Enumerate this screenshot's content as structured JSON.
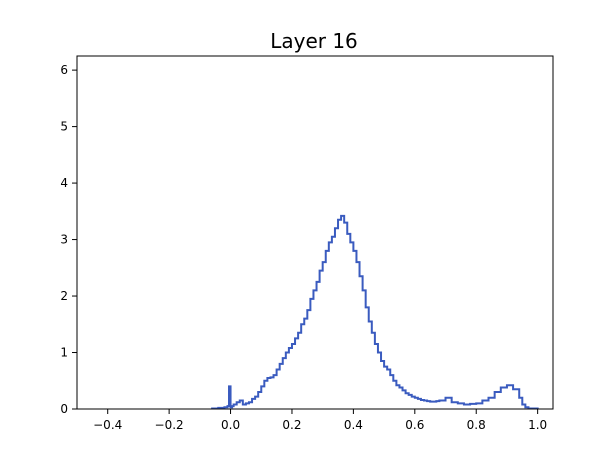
{
  "chart_data": {
    "type": "line",
    "title": "Layer 16",
    "xlabel": "",
    "ylabel": "",
    "xlim": [
      -0.5,
      1.05
    ],
    "ylim": [
      0,
      6.25
    ],
    "xticks": [
      -0.4,
      -0.2,
      0.0,
      0.2,
      0.4,
      0.6,
      0.8,
      1.0
    ],
    "xtick_labels": [
      "−0.4",
      "−0.2",
      "0.0",
      "0.2",
      "0.4",
      "0.6",
      "0.8",
      "1.0"
    ],
    "yticks": [
      0,
      1,
      2,
      3,
      4,
      5,
      6
    ],
    "ytick_labels": [
      "0",
      "1",
      "2",
      "3",
      "4",
      "5",
      "6"
    ],
    "grid": false,
    "line_color": "#3a5bbf",
    "series": [
      {
        "x": [
          -0.06,
          -0.04,
          -0.02,
          -0.01,
          -0.005,
          0.0,
          0.005,
          0.01,
          0.02,
          0.03,
          0.04,
          0.05,
          0.06,
          0.07,
          0.08,
          0.09,
          0.1,
          0.11,
          0.12,
          0.13,
          0.14,
          0.15,
          0.16,
          0.17,
          0.18,
          0.19,
          0.2,
          0.21,
          0.22,
          0.23,
          0.24,
          0.25,
          0.26,
          0.27,
          0.28,
          0.29,
          0.3,
          0.31,
          0.32,
          0.33,
          0.34,
          0.35,
          0.36,
          0.37,
          0.38,
          0.39,
          0.4,
          0.41,
          0.42,
          0.43,
          0.44,
          0.45,
          0.46,
          0.47,
          0.48,
          0.49,
          0.5,
          0.51,
          0.52,
          0.53,
          0.54,
          0.55,
          0.56,
          0.57,
          0.58,
          0.59,
          0.6,
          0.61,
          0.62,
          0.63,
          0.64,
          0.65,
          0.66,
          0.67,
          0.68,
          0.7,
          0.72,
          0.74,
          0.76,
          0.78,
          0.8,
          0.82,
          0.84,
          0.86,
          0.88,
          0.9,
          0.92,
          0.94,
          0.95,
          0.96,
          0.97,
          0.98,
          0.99,
          1.0
        ],
        "y": [
          0.01,
          0.02,
          0.03,
          0.05,
          0.4,
          0.03,
          0.05,
          0.08,
          0.12,
          0.15,
          0.08,
          0.1,
          0.12,
          0.18,
          0.22,
          0.3,
          0.4,
          0.5,
          0.55,
          0.56,
          0.6,
          0.7,
          0.8,
          0.9,
          1.0,
          1.08,
          1.15,
          1.25,
          1.35,
          1.5,
          1.6,
          1.75,
          1.95,
          2.1,
          2.25,
          2.45,
          2.6,
          2.8,
          2.95,
          3.05,
          3.2,
          3.35,
          3.42,
          3.3,
          3.1,
          2.95,
          2.8,
          2.6,
          2.35,
          2.1,
          1.8,
          1.55,
          1.35,
          1.15,
          1.0,
          0.85,
          0.75,
          0.7,
          0.6,
          0.5,
          0.42,
          0.38,
          0.33,
          0.28,
          0.25,
          0.22,
          0.2,
          0.18,
          0.16,
          0.15,
          0.14,
          0.13,
          0.13,
          0.14,
          0.15,
          0.2,
          0.12,
          0.1,
          0.08,
          0.09,
          0.1,
          0.15,
          0.2,
          0.3,
          0.38,
          0.42,
          0.35,
          0.2,
          0.08,
          0.03,
          0.01,
          0.01,
          0.01,
          0.0
        ]
      }
    ]
  }
}
